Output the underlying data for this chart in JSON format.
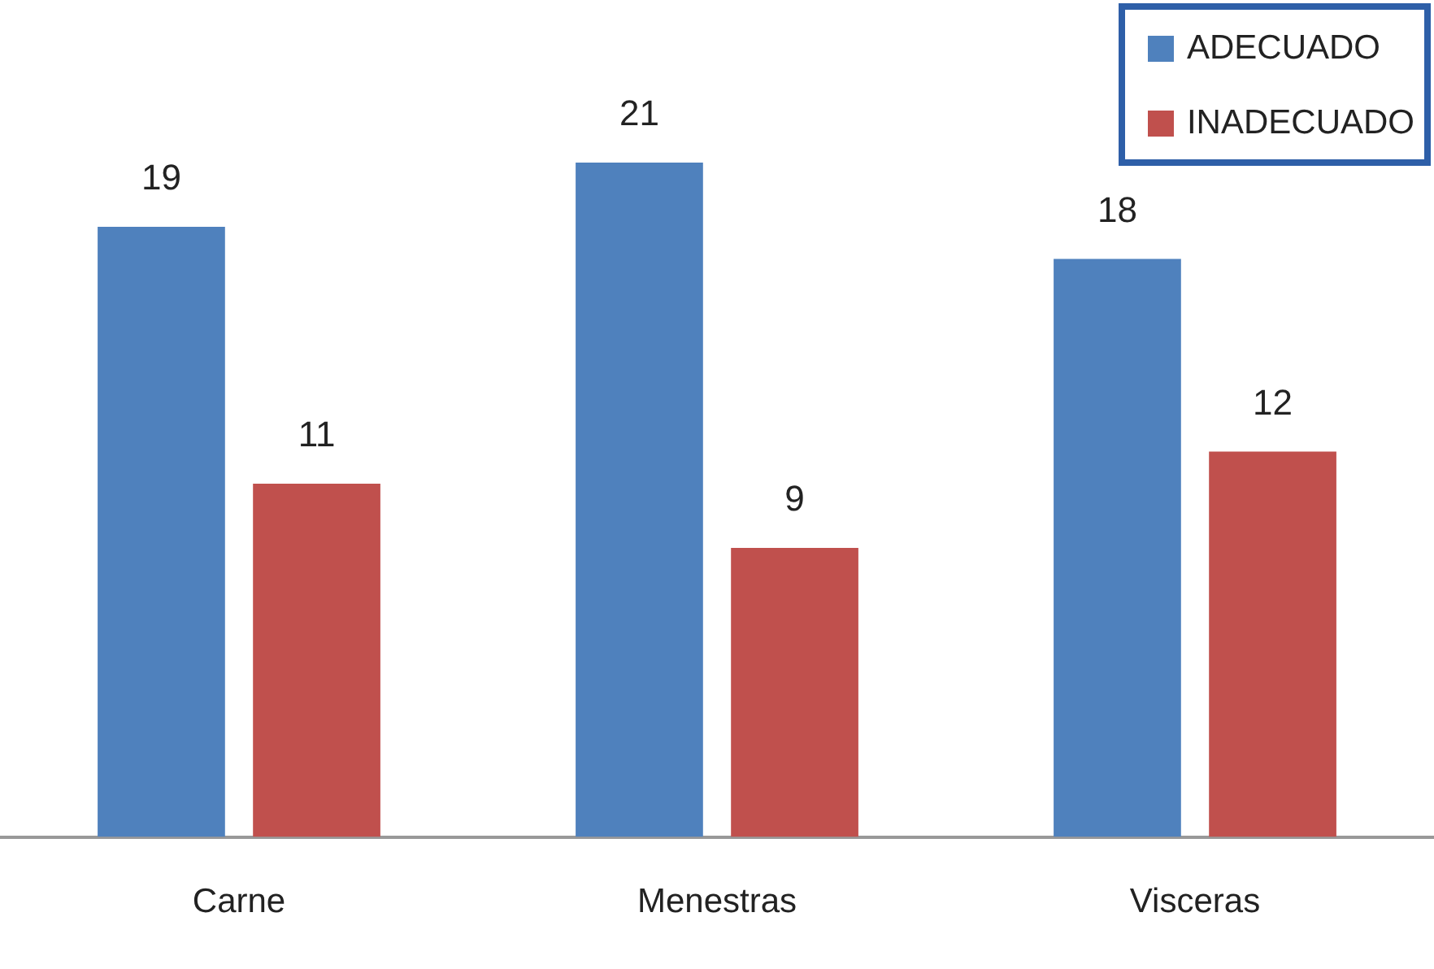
{
  "chart_data": {
    "type": "bar",
    "categories": [
      "Carne",
      "Menestras",
      "Visceras"
    ],
    "series": [
      {
        "name": "ADECUADO",
        "color": "#4f81bd",
        "values": [
          19,
          21,
          18
        ]
      },
      {
        "name": "INADECUADO",
        "color": "#c0504d",
        "values": [
          11,
          9,
          12
        ]
      }
    ],
    "data_labels": true,
    "legend": "top right",
    "grid": false
  }
}
